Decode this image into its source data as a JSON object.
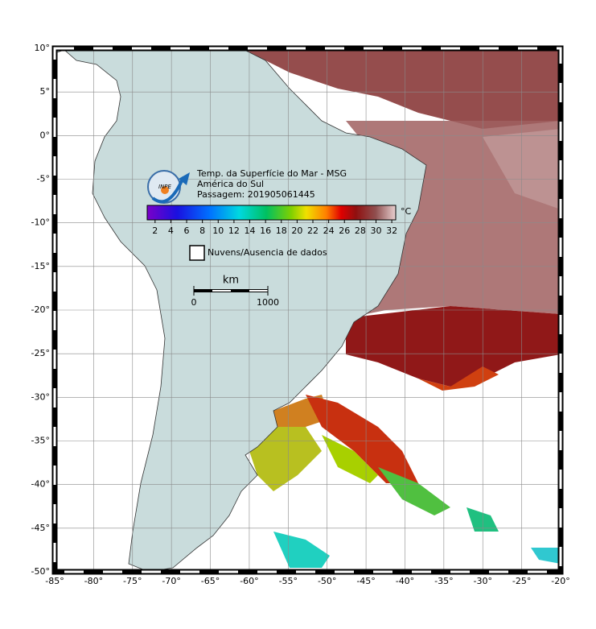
{
  "map": {
    "lon_range": [
      -85,
      -20
    ],
    "lat_range": [
      10,
      -50
    ],
    "lon_ticks": [
      {
        "value": -85,
        "label": "-85°"
      },
      {
        "value": -80,
        "label": "-80°"
      },
      {
        "value": -75,
        "label": "-75°"
      },
      {
        "value": -70,
        "label": "-70°"
      },
      {
        "value": -65,
        "label": "-65°"
      },
      {
        "value": -60,
        "label": "-60°"
      },
      {
        "value": -55,
        "label": "-55°"
      },
      {
        "value": -50,
        "label": "-50°"
      },
      {
        "value": -45,
        "label": "-45°"
      },
      {
        "value": -40,
        "label": "-40°"
      },
      {
        "value": -35,
        "label": "-35°"
      },
      {
        "value": -30,
        "label": "-30°"
      },
      {
        "value": -25,
        "label": "-25°"
      },
      {
        "value": -20,
        "label": "-20°"
      }
    ],
    "lat_ticks": [
      {
        "value": 10,
        "label": "10°"
      },
      {
        "value": 5,
        "label": "5°"
      },
      {
        "value": 0,
        "label": "0°"
      },
      {
        "value": -5,
        "label": "-5°"
      },
      {
        "value": -10,
        "label": "-10°"
      },
      {
        "value": -15,
        "label": "-15°"
      },
      {
        "value": -20,
        "label": "-20°"
      },
      {
        "value": -25,
        "label": "-25°"
      },
      {
        "value": -30,
        "label": "-30°"
      },
      {
        "value": -35,
        "label": "-35°"
      },
      {
        "value": -40,
        "label": "-40°"
      },
      {
        "value": -45,
        "label": "-45°"
      },
      {
        "value": -50,
        "label": "-50°"
      }
    ]
  },
  "legend": {
    "logo": "INPE",
    "title": "Temp. da Superfície do Mar - MSG",
    "region": "América do Sul",
    "pass": "Passagem: 201905061445",
    "colorbar": {
      "range": [
        1,
        32.5
      ],
      "ticks": [
        2,
        4,
        6,
        8,
        10,
        12,
        14,
        16,
        18,
        20,
        22,
        24,
        26,
        28,
        30,
        32
      ],
      "unit": "°C"
    },
    "no_data": "Nuvens/Ausencia de dados"
  },
  "scale_bar": {
    "unit": "km",
    "ticks": [
      0,
      1000
    ]
  }
}
